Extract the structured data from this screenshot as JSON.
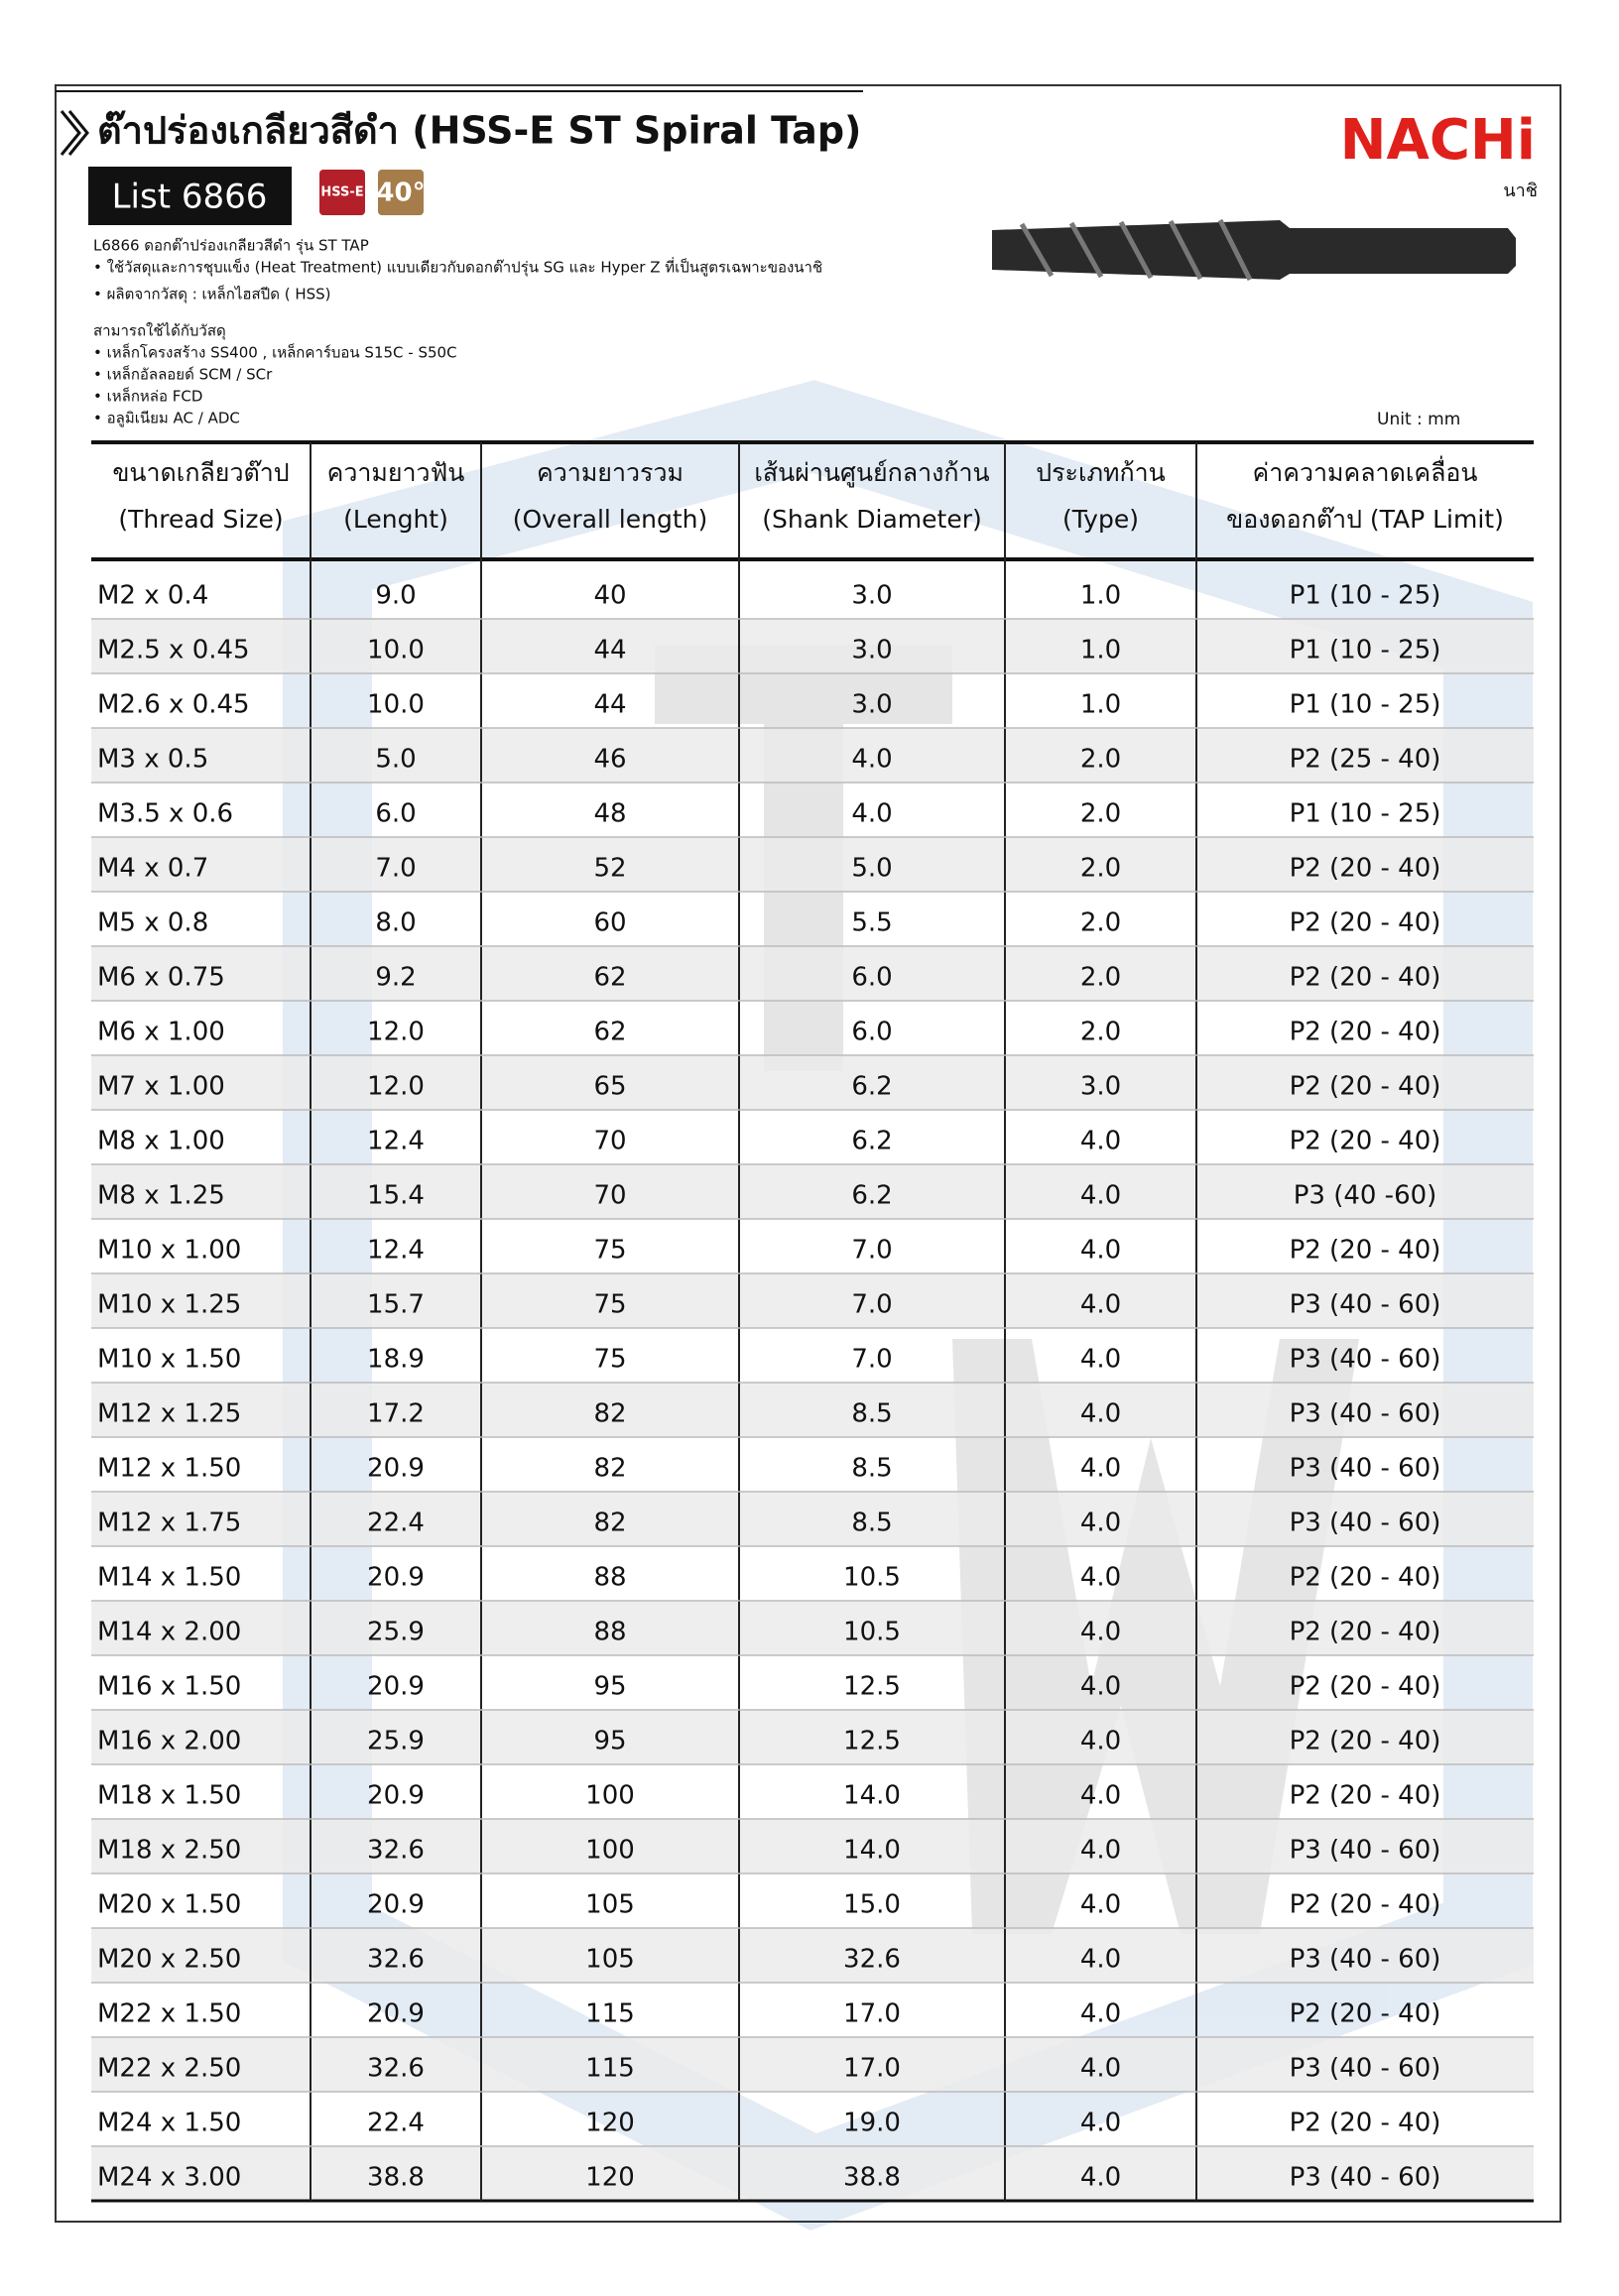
{
  "header": {
    "title": "ต๊าปร่องเกลียวสีดำ (HSS-E ST Spiral Tap)",
    "list": "List 6866",
    "badge_material": "HSS-E",
    "badge_angle": "40°",
    "brand": "NACHi",
    "brand_thai": "นาชิ"
  },
  "description": [
    "L6866 ดอกต๊าปร่องเกลียวสีดำ รุ่น ST TAP",
    "• ใช้วัสดุและการชุบแข็ง (Heat Treatment) แบบเดียวกับดอกต๊าปรุ่น SG และ Hyper Z ที่เป็นสูตรเฉพาะของนาชิ",
    "• ผลิตจากวัสดุ : เหล็กไฮสปีด ( HSS)"
  ],
  "materials": {
    "title": "สามารถใช้ได้กับวัสดุ",
    "items": [
      "• เหล็กโครงสร้าง SS400 , เหล็กคาร์บอน S15C - S50C",
      "• เหล็กอัลลอยด์ SCM / SCr",
      "• เหล็กหล่อ FCD",
      "• อลูมิเนียม AC / ADC"
    ]
  },
  "unit": "Unit : mm",
  "table": {
    "columns": [
      {
        "th": "ขนาดเกลียวต๊าป",
        "en": "(Thread Size)"
      },
      {
        "th": "ความยาวฟัน",
        "en": "(Lenght)"
      },
      {
        "th": "ความยาวรวม",
        "en": "(Overall length)"
      },
      {
        "th": "เส้นผ่านศูนย์กลางก้าน",
        "en": "(Shank Diameter)"
      },
      {
        "th": "ประเภทก้าน",
        "en": "(Type)"
      },
      {
        "th": "ค่าความคลาดเคลื่อน",
        "en": "ของดอกต๊าป (TAP Limit)"
      }
    ],
    "rows": [
      [
        "M2 x 0.4",
        "9.0",
        "40",
        "3.0",
        "1.0",
        "P1 (10 - 25)"
      ],
      [
        "M2.5 x 0.45",
        "10.0",
        "44",
        "3.0",
        "1.0",
        "P1 (10 - 25)"
      ],
      [
        "M2.6 x 0.45",
        "10.0",
        "44",
        "3.0",
        "1.0",
        "P1 (10 - 25)"
      ],
      [
        "M3 x 0.5",
        "5.0",
        "46",
        "4.0",
        "2.0",
        "P2 (25 - 40)"
      ],
      [
        "M3.5 x 0.6",
        "6.0",
        "48",
        "4.0",
        "2.0",
        "P1 (10 - 25)"
      ],
      [
        "M4 x 0.7",
        "7.0",
        "52",
        "5.0",
        "2.0",
        "P2 (20 - 40)"
      ],
      [
        "M5 x 0.8",
        "8.0",
        "60",
        "5.5",
        "2.0",
        "P2 (20 - 40)"
      ],
      [
        "M6 x 0.75",
        "9.2",
        "62",
        "6.0",
        "2.0",
        "P2 (20 - 40)"
      ],
      [
        "M6 x 1.00",
        "12.0",
        "62",
        "6.0",
        "2.0",
        "P2 (20 - 40)"
      ],
      [
        "M7 x 1.00",
        "12.0",
        "65",
        "6.2",
        "3.0",
        "P2 (20 - 40)"
      ],
      [
        "M8 x 1.00",
        "12.4",
        "70",
        "6.2",
        "4.0",
        "P2 (20 - 40)"
      ],
      [
        "M8 x 1.25",
        "15.4",
        "70",
        "6.2",
        "4.0",
        "P3 (40 -60)"
      ],
      [
        "M10 x 1.00",
        "12.4",
        "75",
        "7.0",
        "4.0",
        "P2 (20 - 40)"
      ],
      [
        "M10 x 1.25",
        "15.7",
        "75",
        "7.0",
        "4.0",
        "P3 (40 - 60)"
      ],
      [
        "M10 x 1.50",
        "18.9",
        "75",
        "7.0",
        "4.0",
        "P3 (40 - 60)"
      ],
      [
        "M12 x 1.25",
        "17.2",
        "82",
        "8.5",
        "4.0",
        "P3 (40 - 60)"
      ],
      [
        "M12 x 1.50",
        "20.9",
        "82",
        "8.5",
        "4.0",
        "P3 (40 - 60)"
      ],
      [
        "M12 x 1.75",
        "22.4",
        "82",
        "8.5",
        "4.0",
        "P3 (40 - 60)"
      ],
      [
        "M14 x 1.50",
        "20.9",
        "88",
        "10.5",
        "4.0",
        "P2 (20 - 40)"
      ],
      [
        "M14 x 2.00",
        "25.9",
        "88",
        "10.5",
        "4.0",
        "P2 (20 - 40)"
      ],
      [
        "M16 x 1.50",
        "20.9",
        "95",
        "12.5",
        "4.0",
        "P2 (20 - 40)"
      ],
      [
        "M16 x 2.00",
        "25.9",
        "95",
        "12.5",
        "4.0",
        "P2 (20 - 40)"
      ],
      [
        "M18 x 1.50",
        "20.9",
        "100",
        "14.0",
        "4.0",
        "P2 (20 - 40)"
      ],
      [
        "M18 x 2.50",
        "32.6",
        "100",
        "14.0",
        "4.0",
        "P3 (40 - 60)"
      ],
      [
        "M20 x 1.50",
        "20.9",
        "105",
        "15.0",
        "4.0",
        "P2 (20 - 40)"
      ],
      [
        "M20 x 2.50",
        "32.6",
        "105",
        "32.6",
        "4.0",
        "P3 (40 - 60)"
      ],
      [
        "M22 x 1.50",
        "20.9",
        "115",
        "17.0",
        "4.0",
        "P2 (20 - 40)"
      ],
      [
        "M22 x 2.50",
        "32.6",
        "115",
        "17.0",
        "4.0",
        "P3 (40 - 60)"
      ],
      [
        "M24 x 1.50",
        "22.4",
        "120",
        "19.0",
        "4.0",
        "P2 (20 - 40)"
      ],
      [
        "M24 x 3.00",
        "38.8",
        "120",
        "38.8",
        "4.0",
        "P3 (40 - 60)"
      ]
    ]
  }
}
